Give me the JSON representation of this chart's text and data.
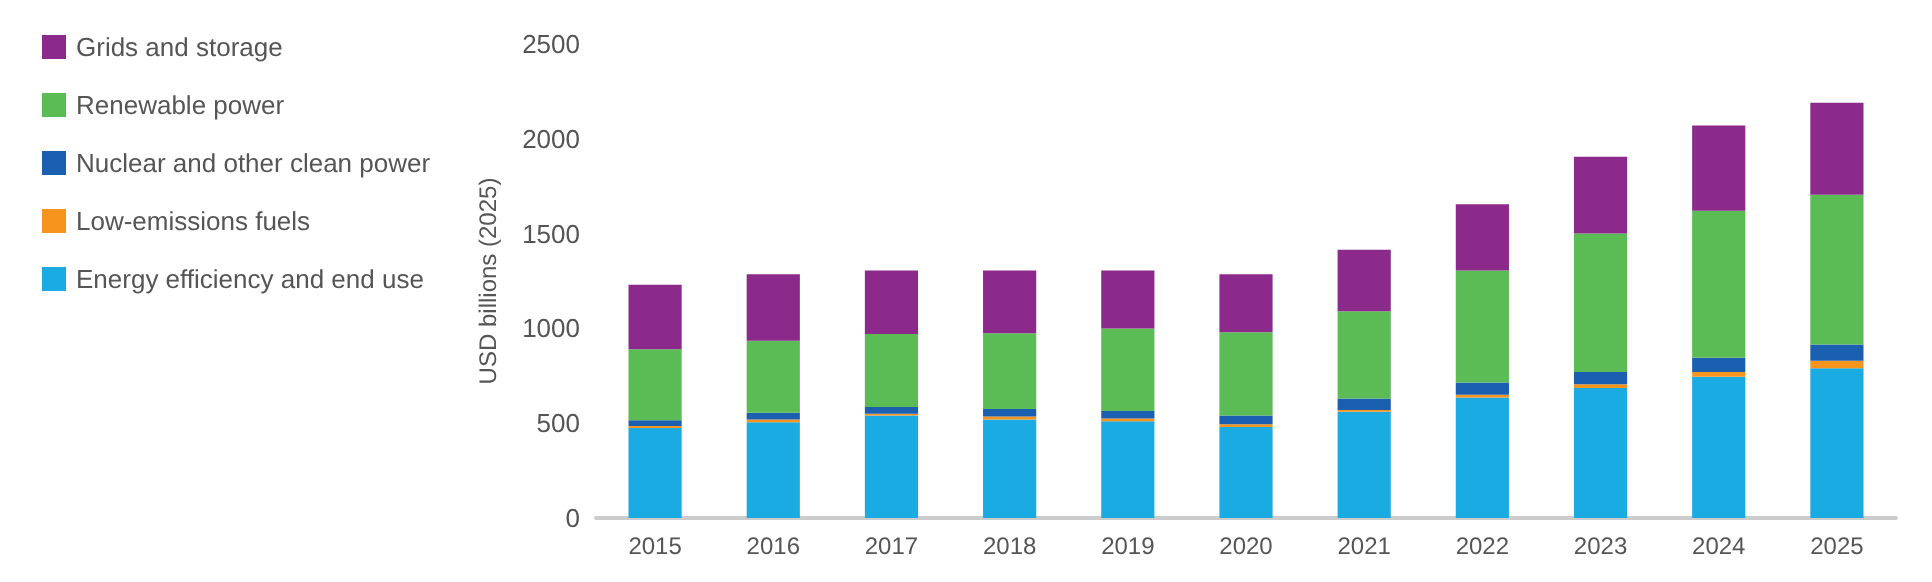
{
  "chart_data": {
    "type": "bar",
    "stacked": true,
    "ylabel": "USD billions (2025)",
    "categories": [
      "2015",
      "2016",
      "2017",
      "2018",
      "2019",
      "2020",
      "2021",
      "2022",
      "2023",
      "2024",
      "2025"
    ],
    "series": [
      {
        "name": "Energy efficiency and end use",
        "color": "#1aabe2",
        "values": [
          475,
          505,
          540,
          520,
          510,
          480,
          560,
          635,
          685,
          745,
          790
        ]
      },
      {
        "name": "Low-emissions fuels",
        "color": "#f7941d",
        "values": [
          10,
          15,
          10,
          15,
          15,
          15,
          10,
          15,
          20,
          25,
          40
        ]
      },
      {
        "name": "Nuclear and other clean power",
        "color": "#1a5fb0",
        "values": [
          30,
          35,
          35,
          40,
          40,
          45,
          60,
          65,
          65,
          75,
          85
        ]
      },
      {
        "name": "Renewable power",
        "color": "#5bbb55",
        "values": [
          375,
          380,
          385,
          400,
          435,
          440,
          460,
          590,
          730,
          775,
          790
        ]
      },
      {
        "name": "Grids and storage",
        "color": "#8b2a8b",
        "values": [
          340,
          350,
          335,
          330,
          305,
          305,
          325,
          350,
          405,
          450,
          485
        ]
      }
    ],
    "ylim": [
      0,
      2500
    ],
    "yticks": [
      0,
      500,
      1000,
      1500,
      2000,
      2500
    ],
    "grid": false,
    "legend": "left"
  }
}
